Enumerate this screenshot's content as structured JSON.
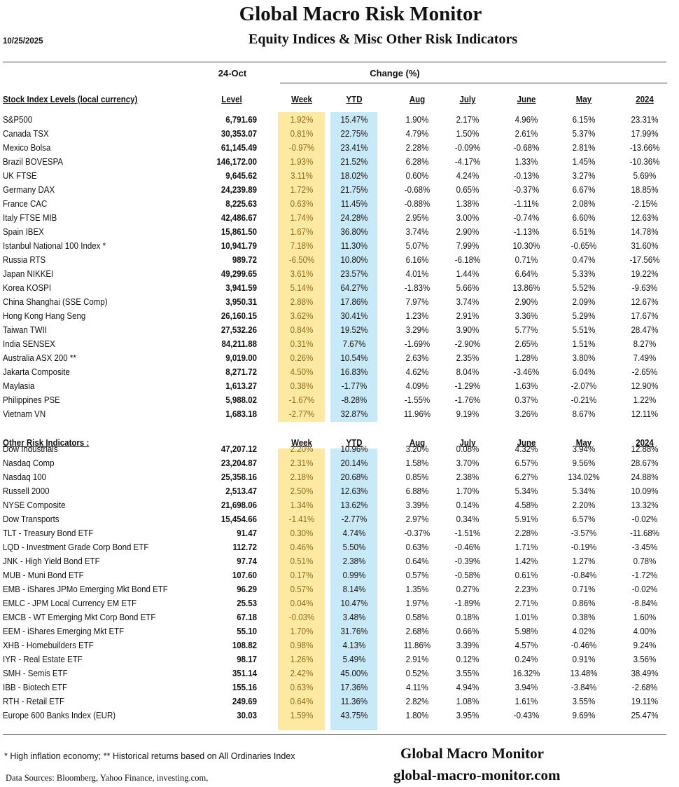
{
  "header": {
    "title": "Global Macro Risk Monitor",
    "subtitle": "Equity Indices & Misc Other Risk Indicators",
    "date": "10/25/2025",
    "level_date": "24-Oct",
    "change_label": "Change (%)"
  },
  "colors": {
    "week_band": "#fde9a2",
    "ytd_band": "#c8eaf8"
  },
  "columns": [
    "Level",
    "Week",
    "YTD",
    "Aug",
    "July",
    "June",
    "May",
    "2024"
  ],
  "sections": [
    {
      "title": "Stock Index Levels (local currency)",
      "rows": [
        [
          "S&P500",
          "6,791.69",
          "1.92%",
          "15.47%",
          "1.90%",
          "2.17%",
          "4.96%",
          "6.15%",
          "23.31%"
        ],
        [
          "Canada TSX",
          "30,353.07",
          "0.81%",
          "22.75%",
          "4.79%",
          "1.50%",
          "2.61%",
          "5.37%",
          "17.99%"
        ],
        [
          "Mexico Bolsa",
          "61,145.49",
          "-0.97%",
          "23.41%",
          "2.28%",
          "-0.09%",
          "-0.68%",
          "2.81%",
          "-13.66%"
        ],
        [
          "Brazil BOVESPA",
          "146,172.00",
          "1.93%",
          "21.52%",
          "6.28%",
          "-4.17%",
          "1.33%",
          "1.45%",
          "-10.36%"
        ],
        [
          "UK FTSE",
          "9,645.62",
          "3.11%",
          "18.02%",
          "0.60%",
          "4.24%",
          "-0.13%",
          "3.27%",
          "5.69%"
        ],
        [
          "Germany DAX",
          "24,239.89",
          "1.72%",
          "21.75%",
          "-0.68%",
          "0.65%",
          "-0.37%",
          "6.67%",
          "18.85%"
        ],
        [
          "France CAC",
          "8,225.63",
          "0.63%",
          "11.45%",
          "-0.88%",
          "1.38%",
          "-1.11%",
          "2.08%",
          "-2.15%"
        ],
        [
          "Italy FTSE MIB",
          "42,486.67",
          "1.74%",
          "24.28%",
          "2.95%",
          "3.00%",
          "-0.74%",
          "6.60%",
          "12.63%"
        ],
        [
          "Spain IBEX",
          "15,861.50",
          "1.67%",
          "36.80%",
          "3.74%",
          "2.90%",
          "-1.13%",
          "6.51%",
          "14.78%"
        ],
        [
          "Istanbul National 100 Index *",
          "10,941.79",
          "7.18%",
          "11.30%",
          "5.07%",
          "7.99%",
          "10.30%",
          "-0.65%",
          "31.60%"
        ],
        [
          "Russia RTS",
          "989.72",
          "-6.50%",
          "10.80%",
          "6.16%",
          "-6.18%",
          "0.71%",
          "0.47%",
          "-17.56%"
        ],
        [
          "Japan NIKKEI",
          "49,299.65",
          "3.61%",
          "23.57%",
          "4.01%",
          "1.44%",
          "6.64%",
          "5.33%",
          "19.22%"
        ],
        [
          "Korea KOSPI",
          "3,941.59",
          "5.14%",
          "64.27%",
          "-1.83%",
          "5.66%",
          "13.86%",
          "5.52%",
          "-9.63%"
        ],
        [
          "China Shanghai (SSE Comp)",
          "3,950.31",
          "2.88%",
          "17.86%",
          "7.97%",
          "3.74%",
          "2.90%",
          "2.09%",
          "12.67%"
        ],
        [
          "Hong Kong Hang Seng",
          "26,160.15",
          "3.62%",
          "30.41%",
          "1.23%",
          "2.91%",
          "3.36%",
          "5.29%",
          "17.67%"
        ],
        [
          "Taiwan  TWII",
          "27,532.26",
          "0.84%",
          "19.52%",
          "3.29%",
          "3.90%",
          "5.77%",
          "5.51%",
          "28.47%"
        ],
        [
          "India SENSEX",
          "84,211.88",
          "0.31%",
          "7.67%",
          "-1.69%",
          "-2.90%",
          "2.65%",
          "1.51%",
          "8.27%"
        ],
        [
          "Australia ASX 200 **",
          "9,019.00",
          "0.26%",
          "10.54%",
          "2.63%",
          "2.35%",
          "1.28%",
          "3.80%",
          "7.49%"
        ],
        [
          "Jakarta Composite",
          "8,271.72",
          "4.50%",
          "16.83%",
          "4.62%",
          "8.04%",
          "-3.46%",
          "6.04%",
          "-2.65%"
        ],
        [
          "Maylasia",
          "1,613.27",
          "0.38%",
          "-1.77%",
          "4.09%",
          "-1.29%",
          "1.63%",
          "-2.07%",
          "12.90%"
        ],
        [
          "Philippines PSE",
          "5,988.02",
          "-1.67%",
          "-8.28%",
          "-1.55%",
          "-1.76%",
          "0.37%",
          "-0.21%",
          "1.22%"
        ],
        [
          "Vietnam VN",
          "1,683.18",
          "-2.77%",
          "32.87%",
          "11.96%",
          "9.19%",
          "3.26%",
          "8.67%",
          "12.11%"
        ]
      ]
    },
    {
      "title": "Other Risk Indicators :",
      "rows": [
        [
          "Dow Industrials",
          "47,207.12",
          "2.20%",
          "10.96%",
          "3.20%",
          "0.08%",
          "4.32%",
          "3.94%",
          "12.88%"
        ],
        [
          "Nasdaq Comp",
          "23,204.87",
          "2.31%",
          "20.14%",
          "1.58%",
          "3.70%",
          "6.57%",
          "9.56%",
          "28.67%"
        ],
        [
          "Nasdaq 100",
          "25,358.16",
          "2.18%",
          "20.68%",
          "0.85%",
          "2.38%",
          "6.27%",
          "134.02%",
          "24.88%"
        ],
        [
          "Russell 2000",
          "2,513.47",
          "2.50%",
          "12.63%",
          "6.88%",
          "1.70%",
          "5.34%",
          "5.34%",
          "10.09%"
        ],
        [
          "NYSE Composite",
          "21,698.06",
          "1.34%",
          "13.62%",
          "3.39%",
          "0.14%",
          "4.58%",
          "2.20%",
          "13.32%"
        ],
        [
          "Dow Transports",
          "15,454.66",
          "-1.41%",
          "-2.77%",
          "2.97%",
          "0.34%",
          "5.91%",
          "6.57%",
          "-0.02%"
        ],
        [
          "TLT - Treasury Bond ETF",
          "91.47",
          "0.30%",
          "4.74%",
          "-0.37%",
          "-1.51%",
          "2.28%",
          "-3.57%",
          "-11.68%"
        ],
        [
          "LQD - Investment Grade Corp Bond ETF",
          "112.72",
          "0.46%",
          "5.50%",
          "0.63%",
          "-0.46%",
          "1.71%",
          "-0.19%",
          "-3.45%"
        ],
        [
          "JNK - High Yield Bond ETF",
          "97.74",
          "0.51%",
          "2.38%",
          "0.64%",
          "-0.39%",
          "1.42%",
          "1.27%",
          "0.78%"
        ],
        [
          "MUB - Muni Bond ETF",
          "107.60",
          "0.17%",
          "0.99%",
          "0.57%",
          "-0.58%",
          "0.61%",
          "-0.84%",
          "-1.72%"
        ],
        [
          "EMB - iShares JPMo Emerging Mkt Bond ETF",
          "96.29",
          "0.57%",
          "8.14%",
          "1.35%",
          "0.27%",
          "2.23%",
          "0.71%",
          "-0.02%"
        ],
        [
          "EMLC - JPM Local Currency EM ETF",
          "25.53",
          "0.04%",
          "10.47%",
          "1.97%",
          "-1.89%",
          "2.71%",
          "0.86%",
          "-8.84%"
        ],
        [
          "EMCB - WT Emerging Mkt Corp Bond ETF",
          "67.18",
          "-0.03%",
          "3.48%",
          "0.58%",
          "0.18%",
          "1.01%",
          "0.38%",
          "1.60%"
        ],
        [
          "EEM - iShares Emerging Mkt ETF",
          "55.10",
          "1.70%",
          "31.76%",
          "2.68%",
          "0.66%",
          "5.98%",
          "4.02%",
          "4.00%"
        ],
        [
          "XHB - Homebuilders ETF",
          "108.82",
          "0.98%",
          "4.13%",
          "11.86%",
          "3.39%",
          "4.57%",
          "-0.46%",
          "9.24%"
        ],
        [
          "IYR - Real Estate ETF",
          "98.17",
          "1.26%",
          "5.49%",
          "2.91%",
          "0.12%",
          "0.24%",
          "0.91%",
          "3.56%"
        ],
        [
          "SMH - Semis ETF",
          "351.14",
          "2.42%",
          "45.00%",
          "0.52%",
          "3.55%",
          "16.32%",
          "13.48%",
          "38.49%"
        ],
        [
          "IBB - Biotech ETF",
          "155.16",
          "0.63%",
          "17.36%",
          "4.11%",
          "4.94%",
          "3.94%",
          "-3.84%",
          "-2.68%"
        ],
        [
          "RTH - Retail ETF",
          "249.69",
          "0.64%",
          "11.36%",
          "2.82%",
          "1.08%",
          "1.61%",
          "3.55%",
          "19.11%"
        ],
        [
          "Europe 600 Banks Index (EUR)",
          "30.03",
          "1.59%",
          "43.75%",
          "1.80%",
          "3.95%",
          "-0.43%",
          "9.69%",
          "25.47%"
        ]
      ]
    }
  ],
  "footer": {
    "footnote": "*  High inflation economy;  **  Historical returns based on All Ordinaries Index",
    "sources": "Data Sources:  Bloomberg,  Yahoo Finance, investing.com,",
    "brand": "Global Macro Monitor",
    "site": "global-macro-monitor.com"
  }
}
